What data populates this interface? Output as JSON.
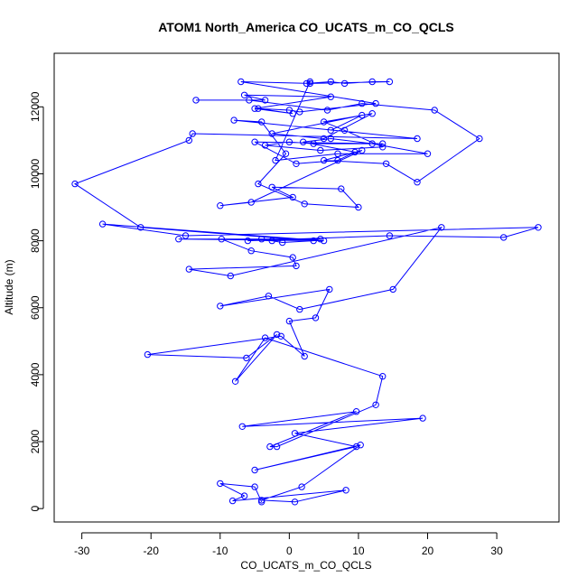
{
  "chart_data": {
    "type": "line",
    "title": "ATOM1 North_America CO_UCATS_m_CO_QCLS",
    "xlabel": "CO_UCATS_m_CO_QCLS",
    "ylabel": "Altitude (m)",
    "xlim": [
      -34,
      39
    ],
    "ylim": [
      -400,
      13600
    ],
    "xticks": [
      -30,
      -20,
      -10,
      0,
      10,
      20,
      30
    ],
    "yticks": [
      0,
      2000,
      4000,
      6000,
      8000,
      10000,
      12000
    ],
    "grid": false,
    "series": [
      {
        "color": "#0000ff",
        "marker": "open-circle",
        "points": [
          [
            -4.0,
            200
          ],
          [
            -5.0,
            650
          ],
          [
            -10.0,
            750
          ],
          [
            -6.5,
            380
          ],
          [
            -8.2,
            230
          ],
          [
            8.2,
            550
          ],
          [
            0.8,
            200
          ],
          [
            -4.0,
            250
          ],
          [
            1.8,
            650
          ],
          [
            10.3,
            1900
          ],
          [
            -5.0,
            1150
          ],
          [
            9.7,
            1850
          ],
          [
            0.8,
            2250
          ],
          [
            19.3,
            2700
          ],
          [
            -6.8,
            2450
          ],
          [
            9.7,
            2900
          ],
          [
            -2.8,
            1850
          ],
          [
            -1.8,
            1850
          ],
          [
            12.5,
            3100
          ],
          [
            13.5,
            3950
          ],
          [
            -3.5,
            5100
          ],
          [
            -7.8,
            3800
          ],
          [
            -1.8,
            5200
          ],
          [
            -6.2,
            4500
          ],
          [
            -20.5,
            4600
          ],
          [
            -1.2,
            5150
          ],
          [
            2.2,
            4550
          ],
          [
            0.0,
            5600
          ],
          [
            3.8,
            5700
          ],
          [
            5.8,
            6550
          ],
          [
            -10.0,
            6050
          ],
          [
            -3.0,
            6350
          ],
          [
            1.5,
            5950
          ],
          [
            15.0,
            6550
          ],
          [
            22.0,
            8400
          ],
          [
            -8.5,
            6950
          ],
          [
            -14.5,
            7150
          ],
          [
            1.0,
            7250
          ],
          [
            0.5,
            7500
          ],
          [
            -5.5,
            7700
          ],
          [
            -9.8,
            8050
          ],
          [
            -2.5,
            8000
          ],
          [
            4.5,
            8050
          ],
          [
            -16.0,
            8050
          ],
          [
            5.0,
            8000
          ],
          [
            -27.0,
            8500
          ],
          [
            -15.0,
            8150
          ],
          [
            36.0,
            8400
          ],
          [
            31.0,
            8100
          ],
          [
            14.5,
            8150
          ],
          [
            -6.0,
            8000
          ],
          [
            -4.0,
            8050
          ],
          [
            -1.0,
            7950
          ],
          [
            3.5,
            8000
          ],
          [
            -21.5,
            8400
          ],
          [
            -31.0,
            9700
          ],
          [
            -14.5,
            11000
          ],
          [
            -14.0,
            11200
          ],
          [
            18.5,
            11050
          ],
          [
            -8.0,
            11600
          ],
          [
            -4.0,
            11550
          ],
          [
            -0.5,
            10600
          ],
          [
            -4.5,
            9700
          ],
          [
            2.2,
            9100
          ],
          [
            10.0,
            9000
          ],
          [
            7.5,
            9550
          ],
          [
            -2.5,
            9600
          ],
          [
            0.5,
            9300
          ],
          [
            -10.0,
            9050
          ],
          [
            -5.5,
            9150
          ],
          [
            10.5,
            10700
          ],
          [
            5.0,
            10400
          ],
          [
            14.0,
            10300
          ],
          [
            18.5,
            9750
          ],
          [
            27.5,
            11050
          ],
          [
            21.0,
            11900
          ],
          [
            10.5,
            12100
          ],
          [
            5.5,
            11900
          ],
          [
            -5.8,
            12200
          ],
          [
            -13.5,
            12200
          ],
          [
            -3.5,
            12200
          ],
          [
            -6.5,
            12350
          ],
          [
            6.0,
            12300
          ],
          [
            -5.0,
            11950
          ],
          [
            0.5,
            11800
          ],
          [
            -4.5,
            11950
          ],
          [
            0.0,
            11900
          ],
          [
            1.5,
            11850
          ],
          [
            12.5,
            12100
          ],
          [
            -7.0,
            12750
          ],
          [
            3.0,
            12700
          ],
          [
            14.5,
            12750
          ],
          [
            12.0,
            12750
          ],
          [
            8.0,
            12700
          ],
          [
            6.0,
            12750
          ],
          [
            2.5,
            12700
          ],
          [
            3.0,
            12750
          ],
          [
            -2.0,
            10400
          ],
          [
            7.0,
            10600
          ],
          [
            20.0,
            10600
          ],
          [
            12.0,
            10900
          ],
          [
            6.0,
            11050
          ],
          [
            2.0,
            10950
          ],
          [
            9.5,
            10650
          ],
          [
            7.0,
            10400
          ],
          [
            1.0,
            10300
          ],
          [
            -5.0,
            10950
          ],
          [
            13.5,
            10900
          ],
          [
            3.5,
            10900
          ],
          [
            0.0,
            10950
          ],
          [
            -3.5,
            10850
          ],
          [
            4.5,
            10700
          ],
          [
            13.5,
            10800
          ],
          [
            8.0,
            11300
          ],
          [
            5.0,
            11550
          ],
          [
            12.0,
            11800
          ],
          [
            5.0,
            11050
          ],
          [
            -2.5,
            11200
          ],
          [
            10.5,
            11750
          ],
          [
            6.0,
            11300
          ]
        ]
      }
    ]
  }
}
